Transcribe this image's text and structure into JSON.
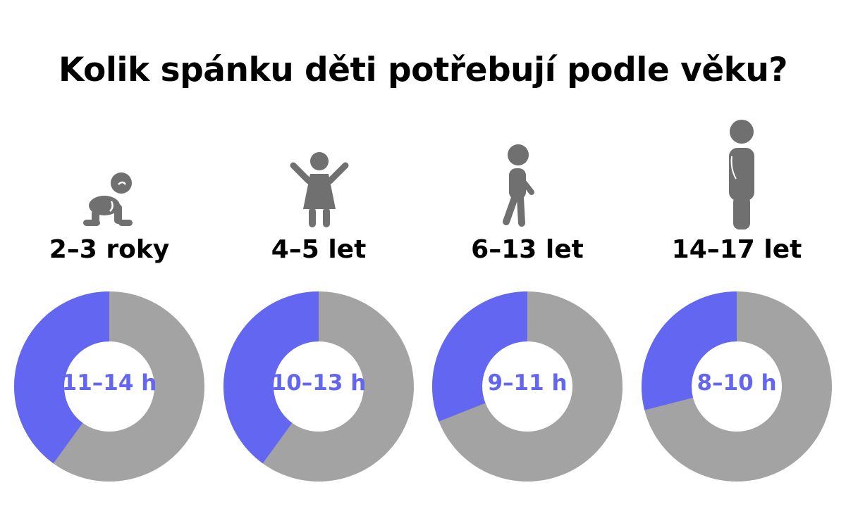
{
  "title": "Kolik spánku děti potřebují podle věku?",
  "colors": {
    "highlight": "#6366F1",
    "rest": "#A3A3A3",
    "icon": "#707070",
    "text": "#000000"
  },
  "icons": [
    "crawling-baby-icon",
    "child-arms-up-icon",
    "walking-child-icon",
    "standing-teen-icon"
  ],
  "chart_data": {
    "type": "pie",
    "categories": [
      "2–3 roky",
      "4–5 let",
      "6–13 let",
      "14–17 let"
    ],
    "labels": [
      "11–14 h",
      "10–13 h",
      "9–11 h",
      "8–10 h"
    ],
    "values": [
      0.4,
      0.4,
      0.31,
      0.29
    ]
  }
}
